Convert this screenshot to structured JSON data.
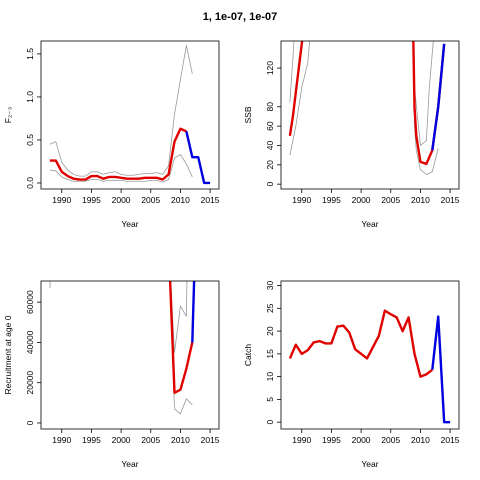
{
  "figure": {
    "title": "1, 1e-07, 1e-07"
  },
  "colors": {
    "estimate": "#e00000",
    "projection": "#0000e0",
    "bounds": "#999999"
  },
  "chart_data": [
    {
      "type": "line",
      "xlabel": "Year",
      "ylabel": "F₂₋₃",
      "xlim": [
        1986.5,
        2016.5
      ],
      "ylim": [
        -0.07,
        1.65
      ],
      "xticks": [
        1990,
        1995,
        2000,
        2005,
        2010,
        2015
      ],
      "yticks": [
        0.0,
        0.5,
        1.0,
        1.5
      ],
      "ytick_labels": [
        "0.0",
        "0.5",
        "1.0",
        "1.5"
      ],
      "series": [
        {
          "role": "estimate",
          "x": [
            1988,
            1989,
            1990,
            1991,
            1992,
            1993,
            1994,
            1995,
            1996,
            1997,
            1998,
            1999,
            2000,
            2001,
            2002,
            2003,
            2004,
            2005,
            2006,
            2007,
            2008,
            2009,
            2010,
            2011
          ],
          "y": [
            0.26,
            0.26,
            0.13,
            0.08,
            0.05,
            0.04,
            0.04,
            0.08,
            0.08,
            0.05,
            0.07,
            0.07,
            0.06,
            0.05,
            0.05,
            0.05,
            0.06,
            0.06,
            0.06,
            0.04,
            0.1,
            0.48,
            0.63,
            0.6
          ]
        },
        {
          "role": "upper",
          "x": [
            1988,
            1989,
            1990,
            1991,
            1992,
            1993,
            1994,
            1995,
            1996,
            1997,
            1998,
            1999,
            2000,
            2001,
            2002,
            2003,
            2004,
            2005,
            2006,
            2007,
            2008,
            2009,
            2010,
            2011,
            2012
          ],
          "y": [
            0.45,
            0.48,
            0.24,
            0.15,
            0.1,
            0.08,
            0.08,
            0.13,
            0.13,
            0.1,
            0.12,
            0.13,
            0.1,
            0.09,
            0.09,
            0.1,
            0.11,
            0.11,
            0.12,
            0.1,
            0.2,
            0.8,
            1.2,
            1.6,
            1.27
          ]
        },
        {
          "role": "lower",
          "x": [
            1988,
            1989,
            1990,
            1991,
            1992,
            1993,
            1994,
            1995,
            1996,
            1997,
            1998,
            1999,
            2000,
            2001,
            2002,
            2003,
            2004,
            2005,
            2006,
            2007,
            2008,
            2009,
            2010,
            2011,
            2012
          ],
          "y": [
            0.15,
            0.14,
            0.07,
            0.04,
            0.02,
            0.02,
            0.02,
            0.04,
            0.04,
            0.02,
            0.03,
            0.03,
            0.03,
            0.02,
            0.02,
            0.02,
            0.02,
            0.03,
            0.03,
            0.01,
            0.04,
            0.29,
            0.33,
            0.22,
            0.07
          ]
        },
        {
          "role": "projection",
          "x": [
            2011,
            2012,
            2013,
            2014,
            2015
          ],
          "y": [
            0.6,
            0.3,
            0.3,
            0.0,
            0.0
          ]
        }
      ]
    },
    {
      "type": "line",
      "xlabel": "Year",
      "ylabel": "SSB",
      "xlim": [
        1986.5,
        2016.5
      ],
      "ylim": [
        -5,
        148
      ],
      "xticks": [
        1990,
        1995,
        2000,
        2005,
        2010,
        2015
      ],
      "yticks": [
        0,
        20,
        40,
        60,
        80,
        120
      ],
      "ytick_labels": [
        "0",
        "20",
        "40",
        "60",
        "80",
        "120"
      ],
      "series": [
        {
          "role": "estimate",
          "x": [
            1988,
            1988.5,
            1989,
            1989.5,
            1990,
            1990.5
          ],
          "y": [
            50,
            70,
            95,
            120,
            145,
            170
          ]
        },
        {
          "role": "upper",
          "x": [
            1988,
            1988.5,
            1989
          ],
          "y": [
            85,
            130,
            180
          ]
        },
        {
          "role": "lower",
          "x": [
            1988,
            1989,
            1990,
            1991,
            1991.5
          ],
          "y": [
            30,
            60,
            100,
            125,
            160
          ]
        },
        {
          "role": "estimate",
          "x": [
            2008.8,
            2009,
            2009.3,
            2010,
            2011,
            2012,
            2013,
            2014
          ],
          "y": [
            150,
            80,
            50,
            23,
            21,
            35,
            80,
            145
          ]
        },
        {
          "role": "upper",
          "x": [
            2008.8,
            2009,
            2009.5,
            2010,
            2011,
            2011.5,
            2012.2
          ],
          "y": [
            150,
            100,
            70,
            40,
            45,
            100,
            150
          ]
        },
        {
          "role": "lower",
          "x": [
            2008.8,
            2009,
            2009.3,
            2010,
            2011,
            2012,
            2013
          ],
          "y": [
            150,
            60,
            35,
            15,
            10,
            13,
            37
          ]
        },
        {
          "role": "projection",
          "x": [
            2012,
            2013,
            2014
          ],
          "y": [
            35,
            80,
            145
          ]
        }
      ]
    },
    {
      "type": "line",
      "xlabel": "Year",
      "ylabel": "Recruitment at age 0",
      "xlim": [
        1986.5,
        2016.5
      ],
      "ylim": [
        -3000,
        70500
      ],
      "xticks": [
        1990,
        1995,
        2000,
        2005,
        2010,
        2015
      ],
      "yticks": [
        0,
        20000,
        40000,
        60000
      ],
      "ytick_labels": [
        "0",
        "20000",
        "40000",
        "60000"
      ],
      "series": [
        {
          "role": "estimate",
          "x": [
            2008,
            2009,
            2010,
            2011,
            2012
          ],
          "y": [
            90000,
            15000,
            16500,
            27000,
            40000
          ]
        },
        {
          "role": "upper",
          "x": [
            1988,
            1988.3
          ],
          "y": [
            67000,
            90000
          ]
        },
        {
          "role": "upper",
          "x": [
            2008,
            2009,
            2010,
            2011,
            2011.2
          ],
          "y": [
            90000,
            35000,
            58000,
            53000,
            90000
          ]
        },
        {
          "role": "lower",
          "x": [
            2008,
            2009,
            2010,
            2011,
            2012
          ],
          "y": [
            90000,
            7000,
            4500,
            12000,
            9000
          ]
        },
        {
          "role": "projection",
          "x": [
            2012,
            2012.5
          ],
          "y": [
            40000,
            90000
          ]
        }
      ]
    },
    {
      "type": "line",
      "xlabel": "Year",
      "ylabel": "Catch",
      "xlim": [
        1986.5,
        2016.5
      ],
      "ylim": [
        -1.5,
        31
      ],
      "xticks": [
        1990,
        1995,
        2000,
        2005,
        2010,
        2015
      ],
      "yticks": [
        0,
        5,
        10,
        15,
        20,
        25,
        30
      ],
      "ytick_labels": [
        "0",
        "5",
        "10",
        "15",
        "20",
        "25",
        "30"
      ],
      "series": [
        {
          "role": "estimate",
          "x": [
            1988,
            1989,
            1990,
            1991,
            1992,
            1993,
            1994,
            1995,
            1996,
            1997,
            1998,
            1999,
            2000,
            2001,
            2002,
            2003,
            2004,
            2005,
            2006,
            2007,
            2008,
            2009,
            2010,
            2011,
            2012
          ],
          "y": [
            14,
            17,
            15,
            15.8,
            17.5,
            17.8,
            17.3,
            17.3,
            21,
            21.2,
            19.7,
            16,
            15,
            14,
            16.5,
            19,
            24.5,
            23.7,
            23,
            20,
            23,
            15,
            10,
            10.5,
            11.5
          ]
        },
        {
          "role": "projection",
          "x": [
            2012,
            2013,
            2014,
            2015
          ],
          "y": [
            11.5,
            23.2,
            0,
            0
          ]
        }
      ]
    }
  ]
}
